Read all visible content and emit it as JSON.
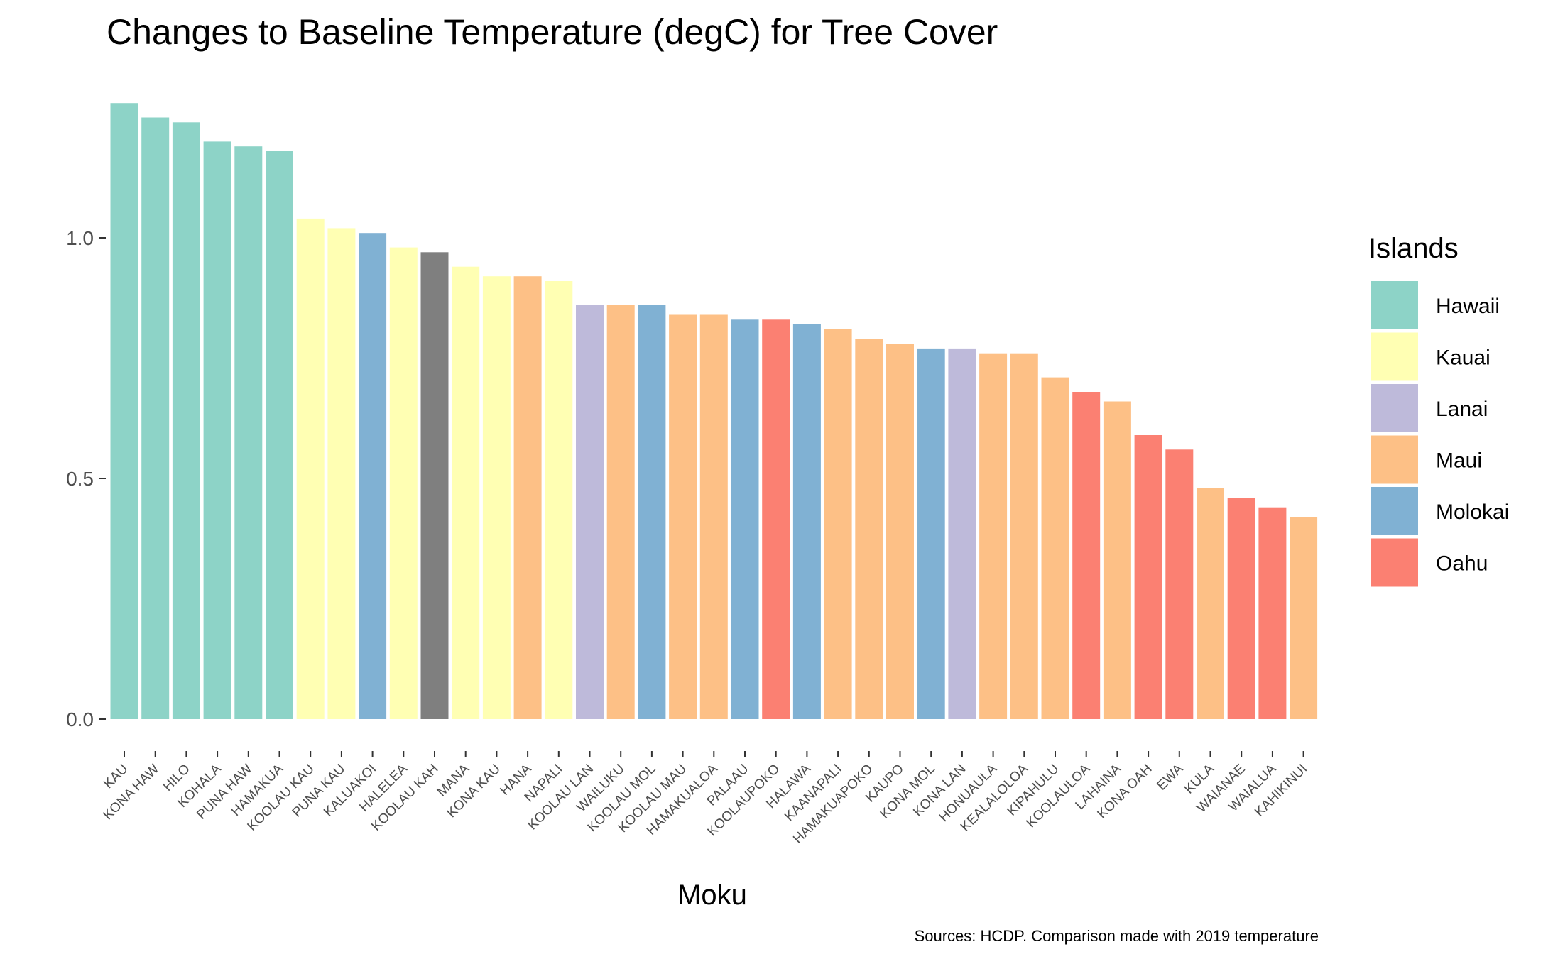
{
  "chart_data": {
    "type": "bar",
    "title": "Changes to Baseline Temperature (degC) for Tree Cover",
    "xlabel": "Moku",
    "ylabel": "",
    "caption": "Sources: HCDP. Comparison made with 2019 temperature",
    "ylim": [
      0,
      1.28
    ],
    "yticks": [
      "0.0",
      "0.5",
      "1.0"
    ],
    "grid": false,
    "legend": {
      "title": "Islands",
      "placement": "right",
      "entries": [
        {
          "name": "Hawaii",
          "color": "#8dd3c7"
        },
        {
          "name": "Kauai",
          "color": "#ffffb3"
        },
        {
          "name": "Lanai",
          "color": "#bebada"
        },
        {
          "name": "Maui",
          "color": "#fdc086"
        },
        {
          "name": "Molokai",
          "color": "#80b1d3"
        },
        {
          "name": "Oahu",
          "color": "#fb8072"
        }
      ]
    },
    "na_color": "#7f7f7f",
    "categories": [
      "KAU",
      "KONA HAW",
      "HILO",
      "KOHALA",
      "PUNA HAW",
      "HAMAKUA",
      "KOOLAU KAU",
      "PUNA KAU",
      "KALUAKOI",
      "HALELEA",
      "KOOLAU KAH",
      "MANA",
      "KONA KAU",
      "HANA",
      "NAPALI",
      "KOOLAU LAN",
      "WAILUKU",
      "KOOLAU MOL",
      "KOOLAU MAU",
      "HAMAKUALOA",
      "PALAAU",
      "KOOLAUPOKO",
      "HALAWA",
      "KAANAPALI",
      "HAMAKUAPOKO",
      "KAUPO",
      "KONA MOL",
      "KONA LAN",
      "HONUAULA",
      "KEALALOLOA",
      "KIPAHULU",
      "KOOLAULOA",
      "LAHAINA",
      "KONA OAH",
      "EWA",
      "KULA",
      "WAIANAE",
      "WAIALUA",
      "KAHIKINUI"
    ],
    "values": [
      1.28,
      1.25,
      1.24,
      1.2,
      1.19,
      1.18,
      1.04,
      1.02,
      1.01,
      0.98,
      0.97,
      0.94,
      0.92,
      0.92,
      0.91,
      0.86,
      0.86,
      0.86,
      0.84,
      0.84,
      0.83,
      0.83,
      0.82,
      0.81,
      0.79,
      0.78,
      0.77,
      0.77,
      0.76,
      0.76,
      0.71,
      0.68,
      0.66,
      0.59,
      0.56,
      0.48,
      0.46,
      0.44,
      0.42
    ],
    "islands": [
      "Hawaii",
      "Hawaii",
      "Hawaii",
      "Hawaii",
      "Hawaii",
      "Hawaii",
      "Kauai",
      "Kauai",
      "Molokai",
      "Kauai",
      "NA",
      "Kauai",
      "Kauai",
      "Maui",
      "Kauai",
      "Lanai",
      "Maui",
      "Molokai",
      "Maui",
      "Maui",
      "Molokai",
      "Oahu",
      "Molokai",
      "Maui",
      "Maui",
      "Maui",
      "Molokai",
      "Lanai",
      "Maui",
      "Maui",
      "Maui",
      "Oahu",
      "Maui",
      "Oahu",
      "Oahu",
      "Maui",
      "Oahu",
      "Oahu",
      "Maui"
    ]
  }
}
